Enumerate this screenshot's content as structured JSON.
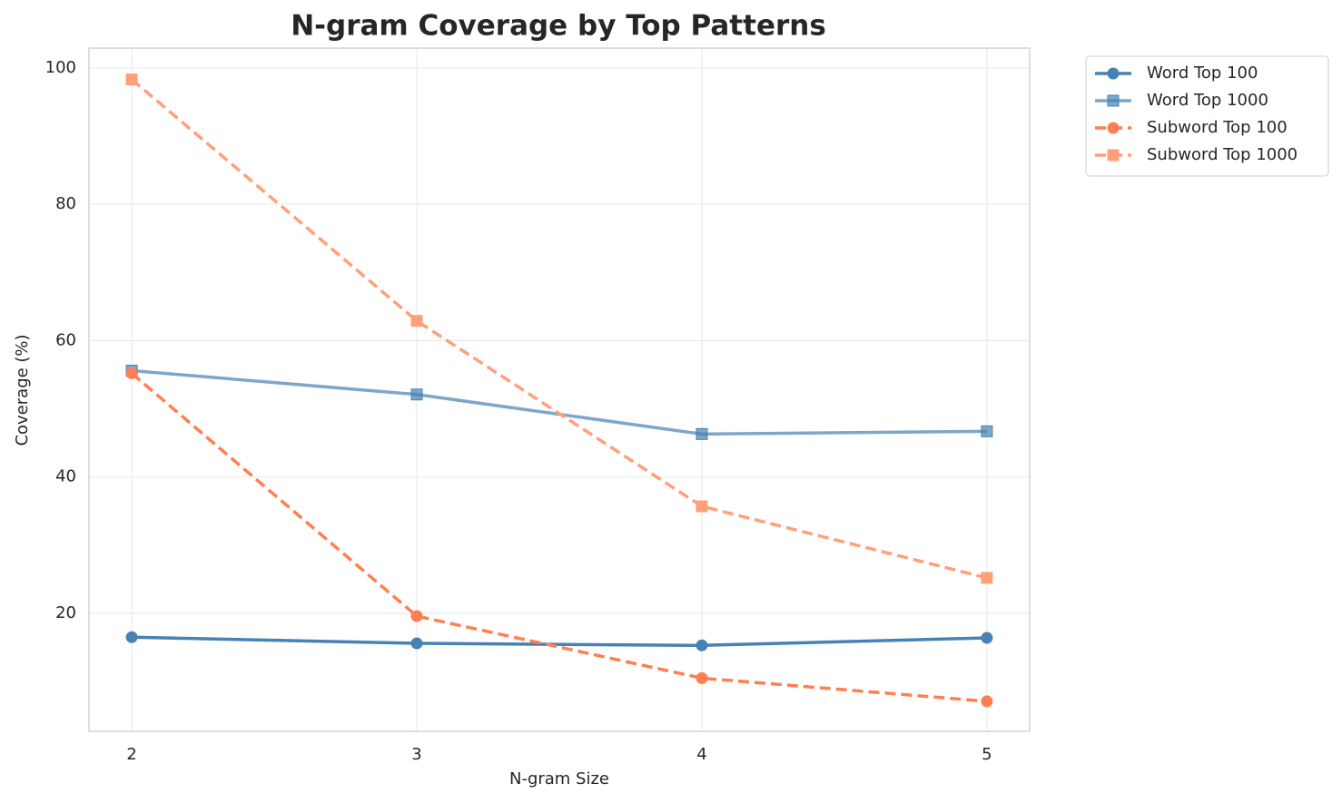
{
  "chart_data": {
    "type": "line",
    "title": "N-gram Coverage by Top Patterns",
    "x_label": "N-gram Size",
    "y_label": "Coverage (%)",
    "x": [
      2,
      3,
      4,
      5
    ],
    "series": [
      {
        "name": "Word Top 100",
        "color": "#4682b4",
        "marker": "circle",
        "dashed": false,
        "opacity": 1,
        "values": [
          16.5,
          15.6,
          15.3,
          16.4
        ]
      },
      {
        "name": "Word Top 1000",
        "color": "#4682b4",
        "marker": "square",
        "dashed": false,
        "opacity": 0.7,
        "values": [
          55.6,
          52.1,
          46.3,
          46.7
        ]
      },
      {
        "name": "Subword Top 100",
        "color": "#ff7f50",
        "marker": "circle",
        "dashed": true,
        "opacity": 1,
        "values": [
          55.2,
          19.6,
          10.5,
          7.1
        ]
      },
      {
        "name": "Subword Top 1000",
        "color": "#ffa07a",
        "marker": "square",
        "dashed": true,
        "opacity": 1,
        "values": [
          98.3,
          62.9,
          35.7,
          25.2
        ]
      }
    ],
    "xlim": [
      1.85,
      5.15
    ],
    "xticks": [
      2,
      3,
      4,
      5
    ],
    "ylim": [
      2.7,
      102.9
    ],
    "yticks": [
      20,
      40,
      60,
      80,
      100
    ],
    "grid": true,
    "legend": "outside-right"
  }
}
